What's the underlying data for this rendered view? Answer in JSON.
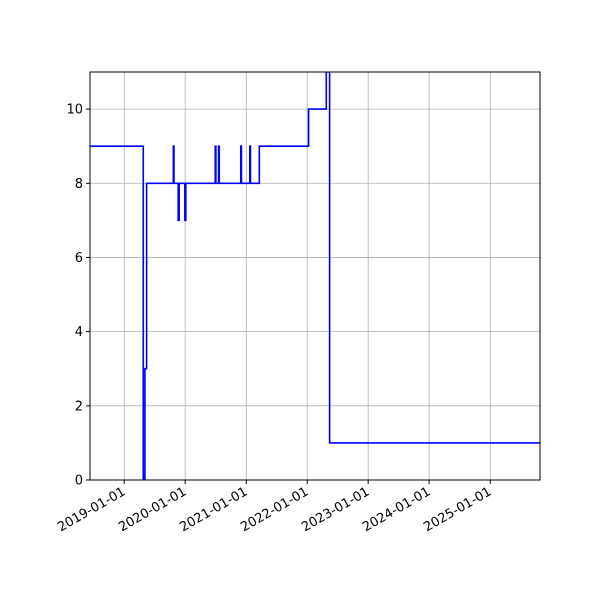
{
  "chart_data": {
    "type": "line",
    "title": "",
    "xlabel": "",
    "ylabel": "",
    "x_axis_type": "date",
    "xlim": [
      "2018-06-10",
      "2025-10-26"
    ],
    "ylim": [
      0,
      11
    ],
    "grid": true,
    "legend": "none",
    "x_ticks": [
      "2019-01-01",
      "2020-01-01",
      "2021-01-01",
      "2022-01-01",
      "2023-01-01",
      "2024-01-01",
      "2025-01-01"
    ],
    "y_ticks": [
      0,
      2,
      4,
      6,
      8,
      10
    ],
    "x_tick_labels": [
      "2019-01-01",
      "2020-01-01",
      "2021-01-01",
      "2022-01-01",
      "2023-01-01",
      "2024-01-01",
      "2025-01-01"
    ],
    "y_tick_labels": [
      "0",
      "2",
      "4",
      "6",
      "8",
      "10"
    ],
    "series": [
      {
        "color": "#0000ff",
        "step": "post",
        "points": [
          [
            "2018-06-10",
            9
          ],
          [
            "2019-04-25",
            0
          ],
          [
            "2019-05-05",
            3
          ],
          [
            "2019-05-15",
            8
          ],
          [
            "2019-10-22",
            9
          ],
          [
            "2019-10-26",
            8
          ],
          [
            "2019-11-20",
            7
          ],
          [
            "2019-11-26",
            8
          ],
          [
            "2019-12-30",
            7
          ],
          [
            "2020-01-05",
            8
          ],
          [
            "2020-06-29",
            9
          ],
          [
            "2020-07-03",
            8
          ],
          [
            "2020-07-19",
            9
          ],
          [
            "2020-07-23",
            8
          ],
          [
            "2020-11-29",
            9
          ],
          [
            "2020-12-03",
            8
          ],
          [
            "2021-01-22",
            9
          ],
          [
            "2021-01-26",
            8
          ],
          [
            "2021-03-20",
            9
          ],
          [
            "2022-01-09",
            10
          ],
          [
            "2022-04-25",
            11
          ],
          [
            "2022-05-15",
            1
          ],
          [
            "2025-10-26",
            1
          ]
        ]
      }
    ]
  }
}
